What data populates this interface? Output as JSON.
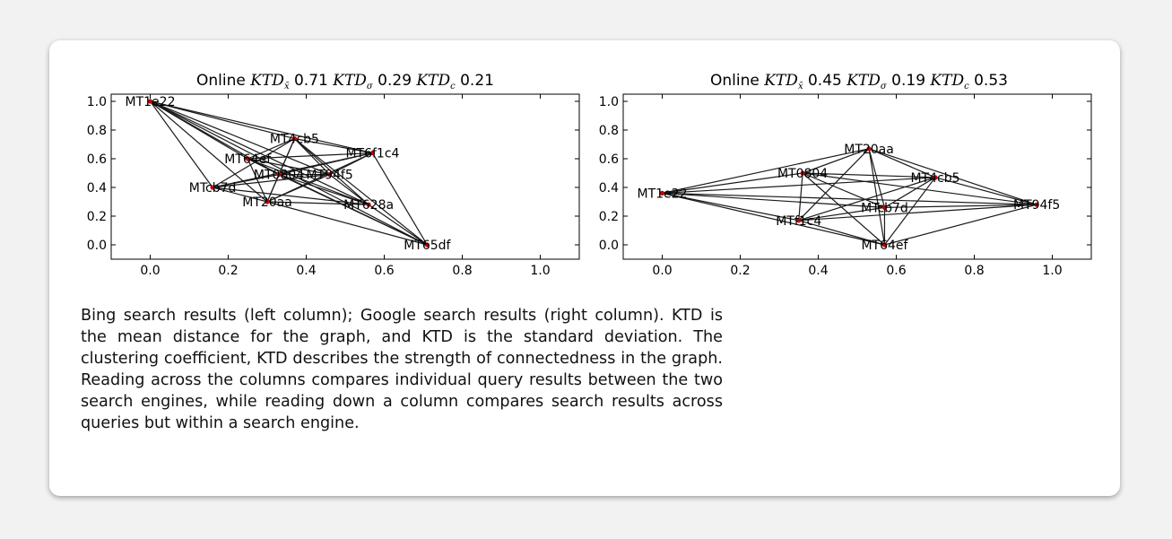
{
  "caption": "Bing search results (left column); Google search results (right column). KTD is the mean distance for the graph, and KTD is the standard deviation. The clustering coefficient, KTD describes the strength of connectedness in the graph. Reading across the columns compares individual query results between the two search engines, while reading down a column compares search results across queries but within a search engine.",
  "chart_data": [
    {
      "type": "network",
      "title_prefix": "Online",
      "title_parts": [
        {
          "sym": "KTD",
          "sub": "x̄",
          "value": "0.71"
        },
        {
          "sym": "KTD",
          "sub": "σ",
          "value": "0.29"
        },
        {
          "sym": "KTD",
          "sub": "c",
          "value": "0.21"
        }
      ],
      "xlim": [
        -0.1,
        1.1
      ],
      "ylim": [
        -0.1,
        1.05
      ],
      "xticks": [
        "0.0",
        "0.2",
        "0.4",
        "0.6",
        "0.8",
        "1.0"
      ],
      "yticks": [
        "0.0",
        "0.2",
        "0.4",
        "0.6",
        "0.8",
        "1.0"
      ],
      "nodes": [
        {
          "label": "MT1e22",
          "x": 0.0,
          "y": 1.0
        },
        {
          "label": "MT4cb5",
          "x": 0.37,
          "y": 0.74
        },
        {
          "label": "MT6f1c4",
          "x": 0.57,
          "y": 0.64
        },
        {
          "label": "MT64ef",
          "x": 0.25,
          "y": 0.6
        },
        {
          "label": "MT0804",
          "x": 0.33,
          "y": 0.49
        },
        {
          "label": "MT94f5",
          "x": 0.46,
          "y": 0.49
        },
        {
          "label": "MTcb7d",
          "x": 0.16,
          "y": 0.4
        },
        {
          "label": "MT20aa",
          "x": 0.3,
          "y": 0.3
        },
        {
          "label": "MT628a",
          "x": 0.56,
          "y": 0.28
        },
        {
          "label": "MT65df",
          "x": 0.71,
          "y": 0.0
        }
      ],
      "edges": [
        [
          0,
          1
        ],
        [
          0,
          2
        ],
        [
          0,
          3
        ],
        [
          0,
          4
        ],
        [
          0,
          5
        ],
        [
          0,
          6
        ],
        [
          0,
          7
        ],
        [
          0,
          8
        ],
        [
          0,
          9
        ],
        [
          1,
          2
        ],
        [
          1,
          3
        ],
        [
          1,
          4
        ],
        [
          1,
          5
        ],
        [
          1,
          6
        ],
        [
          1,
          7
        ],
        [
          1,
          8
        ],
        [
          1,
          9
        ],
        [
          2,
          3
        ],
        [
          2,
          4
        ],
        [
          2,
          5
        ],
        [
          2,
          6
        ],
        [
          2,
          7
        ],
        [
          2,
          9
        ],
        [
          3,
          4
        ],
        [
          3,
          5
        ],
        [
          3,
          7
        ],
        [
          3,
          8
        ],
        [
          3,
          9
        ],
        [
          4,
          5
        ],
        [
          4,
          6
        ],
        [
          4,
          7
        ],
        [
          4,
          8
        ],
        [
          4,
          9
        ],
        [
          5,
          6
        ],
        [
          5,
          7
        ],
        [
          5,
          8
        ],
        [
          6,
          7
        ],
        [
          6,
          8
        ],
        [
          7,
          8
        ],
        [
          7,
          9
        ],
        [
          8,
          9
        ]
      ]
    },
    {
      "type": "network",
      "title_prefix": "Online",
      "title_parts": [
        {
          "sym": "KTD",
          "sub": "x̄",
          "value": "0.45"
        },
        {
          "sym": "KTD",
          "sub": "σ",
          "value": "0.19"
        },
        {
          "sym": "KTD",
          "sub": "c",
          "value": "0.53"
        }
      ],
      "xlim": [
        -0.1,
        1.1
      ],
      "ylim": [
        -0.1,
        1.05
      ],
      "xticks": [
        "0.0",
        "0.2",
        "0.4",
        "0.6",
        "0.8",
        "1.0"
      ],
      "yticks": [
        "0.0",
        "0.2",
        "0.4",
        "0.6",
        "0.8",
        "1.0"
      ],
      "nodes": [
        {
          "label": "MT20aa",
          "x": 0.53,
          "y": 0.67
        },
        {
          "label": "MT0804",
          "x": 0.36,
          "y": 0.5
        },
        {
          "label": "MT4cb5",
          "x": 0.7,
          "y": 0.47
        },
        {
          "label": "MT1e22",
          "x": 0.0,
          "y": 0.36
        },
        {
          "label": "MT94f5",
          "x": 0.96,
          "y": 0.28
        },
        {
          "label": "MTcb7d",
          "x": 0.57,
          "y": 0.26
        },
        {
          "label": "MTf1c4",
          "x": 0.35,
          "y": 0.17
        },
        {
          "label": "MT64ef",
          "x": 0.57,
          "y": 0.0
        }
      ],
      "edges": [
        [
          0,
          1
        ],
        [
          0,
          2
        ],
        [
          0,
          3
        ],
        [
          0,
          4
        ],
        [
          0,
          5
        ],
        [
          0,
          6
        ],
        [
          0,
          7
        ],
        [
          1,
          2
        ],
        [
          1,
          3
        ],
        [
          1,
          4
        ],
        [
          1,
          5
        ],
        [
          1,
          6
        ],
        [
          1,
          7
        ],
        [
          2,
          3
        ],
        [
          2,
          4
        ],
        [
          2,
          5
        ],
        [
          2,
          6
        ],
        [
          2,
          7
        ],
        [
          3,
          4
        ],
        [
          3,
          5
        ],
        [
          3,
          6
        ],
        [
          3,
          7
        ],
        [
          4,
          5
        ],
        [
          4,
          6
        ],
        [
          4,
          7
        ],
        [
          5,
          6
        ],
        [
          5,
          7
        ],
        [
          6,
          7
        ]
      ]
    }
  ]
}
